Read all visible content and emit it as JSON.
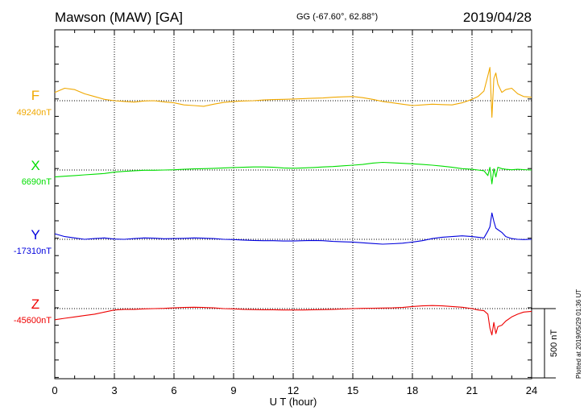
{
  "header": {
    "station": "Mawson (MAW)  [GA]",
    "coords": "GG (-67.60°,  62.88°)",
    "date": "2019/04/28"
  },
  "footer": {
    "plotted": "Plotted at 2019/05/29 01:36 UT"
  },
  "chart_data": {
    "type": "line",
    "xlabel": "U T (hour)",
    "xlim": [
      0,
      24
    ],
    "xticks": [
      0,
      3,
      6,
      9,
      12,
      15,
      18,
      21,
      24
    ],
    "scale_bar": {
      "label": "500 nT",
      "value_nT": 500
    },
    "grid": true,
    "series": [
      {
        "name": "F",
        "baseline_label": "49240nT",
        "baseline_nT": 49240,
        "color": "#f0a800",
        "x": [
          0,
          0.5,
          1,
          1.5,
          2,
          2.5,
          3,
          3.5,
          4,
          4.5,
          5,
          5.5,
          6,
          6.5,
          7,
          7.5,
          8,
          8.5,
          9,
          9.5,
          10,
          10.5,
          11,
          11.5,
          12,
          12.5,
          13,
          13.5,
          14,
          14.5,
          15,
          15.5,
          16,
          16.5,
          17,
          17.5,
          18,
          18.5,
          19,
          19.5,
          20,
          20.5,
          21,
          21.3,
          21.6,
          21.8,
          21.9,
          22,
          22.1,
          22.2,
          22.3,
          22.5,
          22.7,
          23,
          23.3,
          23.6,
          24
        ],
        "y": [
          49300,
          49330,
          49320,
          49290,
          49270,
          49250,
          49240,
          49235,
          49230,
          49238,
          49240,
          49232,
          49225,
          49210,
          49205,
          49200,
          49215,
          49228,
          49235,
          49238,
          49240,
          49245,
          49248,
          49250,
          49252,
          49255,
          49258,
          49260,
          49265,
          49268,
          49270,
          49262,
          49250,
          49235,
          49225,
          49215,
          49205,
          49210,
          49215,
          49212,
          49210,
          49225,
          49250,
          49270,
          49310,
          49420,
          49480,
          49120,
          49400,
          49440,
          49360,
          49300,
          49320,
          49330,
          49290,
          49270,
          49265
        ]
      },
      {
        "name": "X",
        "baseline_label": "6690nT",
        "baseline_nT": 6690,
        "color": "#00dd00",
        "x": [
          0,
          0.5,
          1,
          1.5,
          2,
          2.5,
          3,
          3.5,
          4,
          4.5,
          5,
          5.5,
          6,
          6.5,
          7,
          7.5,
          8,
          8.5,
          9,
          9.5,
          10,
          10.5,
          11,
          11.5,
          12,
          12.5,
          13,
          13.5,
          14,
          14.5,
          15,
          15.5,
          16,
          16.5,
          17,
          17.5,
          18,
          18.5,
          19,
          19.5,
          20,
          20.5,
          21,
          21.3,
          21.6,
          21.8,
          21.9,
          22,
          22.1,
          22.2,
          22.3,
          22.5,
          22.7,
          23,
          23.3,
          23.6,
          24
        ],
        "y": [
          6640,
          6645,
          6650,
          6655,
          6660,
          6665,
          6675,
          6680,
          6685,
          6688,
          6688,
          6690,
          6692,
          6695,
          6698,
          6700,
          6702,
          6705,
          6708,
          6710,
          6712,
          6712,
          6710,
          6705,
          6703,
          6705,
          6708,
          6712,
          6715,
          6720,
          6725,
          6730,
          6740,
          6745,
          6742,
          6738,
          6735,
          6730,
          6725,
          6718,
          6710,
          6700,
          6695,
          6690,
          6685,
          6650,
          6710,
          6590,
          6700,
          6640,
          6710,
          6700,
          6695,
          6692,
          6695,
          6693,
          6690
        ]
      },
      {
        "name": "Y",
        "baseline_label": "-17310nT",
        "baseline_nT": -17310,
        "color": "#0000dd",
        "x": [
          0,
          0.5,
          1,
          1.5,
          2,
          2.5,
          3,
          3.5,
          4,
          4.5,
          5,
          5.5,
          6,
          6.5,
          7,
          7.5,
          8,
          8.5,
          9,
          9.5,
          10,
          10.5,
          11,
          11.5,
          12,
          12.5,
          13,
          13.5,
          14,
          14.5,
          15,
          15.5,
          16,
          16.5,
          17,
          17.5,
          18,
          18.5,
          19,
          19.5,
          20,
          20.5,
          21,
          21.3,
          21.6,
          21.8,
          21.9,
          22,
          22.1,
          22.2,
          22.3,
          22.5,
          22.7,
          23,
          23.3,
          23.6,
          24
        ],
        "y": [
          -17270,
          -17290,
          -17300,
          -17310,
          -17305,
          -17300,
          -17308,
          -17310,
          -17305,
          -17300,
          -17302,
          -17306,
          -17305,
          -17303,
          -17300,
          -17302,
          -17305,
          -17310,
          -17312,
          -17315,
          -17318,
          -17320,
          -17320,
          -17322,
          -17322,
          -17320,
          -17318,
          -17320,
          -17325,
          -17328,
          -17330,
          -17335,
          -17340,
          -17345,
          -17342,
          -17338,
          -17330,
          -17320,
          -17305,
          -17295,
          -17290,
          -17285,
          -17290,
          -17295,
          -17300,
          -17250,
          -17220,
          -17120,
          -17180,
          -17230,
          -17240,
          -17260,
          -17290,
          -17305,
          -17310,
          -17312,
          -17310
        ]
      },
      {
        "name": "Z",
        "baseline_label": "-45600nT",
        "baseline_nT": -45600,
        "color": "#ee0000",
        "x": [
          0,
          0.5,
          1,
          1.5,
          2,
          2.5,
          3,
          3.5,
          4,
          4.5,
          5,
          5.5,
          6,
          6.5,
          7,
          7.5,
          8,
          8.5,
          9,
          9.5,
          10,
          10.5,
          11,
          11.5,
          12,
          12.5,
          13,
          13.5,
          14,
          14.5,
          15,
          15.5,
          16,
          16.5,
          17,
          17.5,
          18,
          18.5,
          19,
          19.5,
          20,
          20.5,
          21,
          21.3,
          21.6,
          21.8,
          21.9,
          22,
          22.1,
          22.2,
          22.3,
          22.5,
          22.7,
          23,
          23.3,
          23.6,
          24
        ],
        "y": [
          -45680,
          -45670,
          -45660,
          -45650,
          -45640,
          -45625,
          -45610,
          -45605,
          -45605,
          -45602,
          -45600,
          -45598,
          -45595,
          -45592,
          -45590,
          -45592,
          -45595,
          -45600,
          -45602,
          -45605,
          -45607,
          -45608,
          -45608,
          -45610,
          -45610,
          -45610,
          -45608,
          -45607,
          -45605,
          -45603,
          -45600,
          -45598,
          -45597,
          -45596,
          -45595,
          -45592,
          -45585,
          -45580,
          -45578,
          -45580,
          -45585,
          -45590,
          -45600,
          -45610,
          -45615,
          -45640,
          -45740,
          -45790,
          -45700,
          -45780,
          -45730,
          -45720,
          -45690,
          -45660,
          -45640,
          -45625,
          -45620
        ]
      }
    ]
  }
}
